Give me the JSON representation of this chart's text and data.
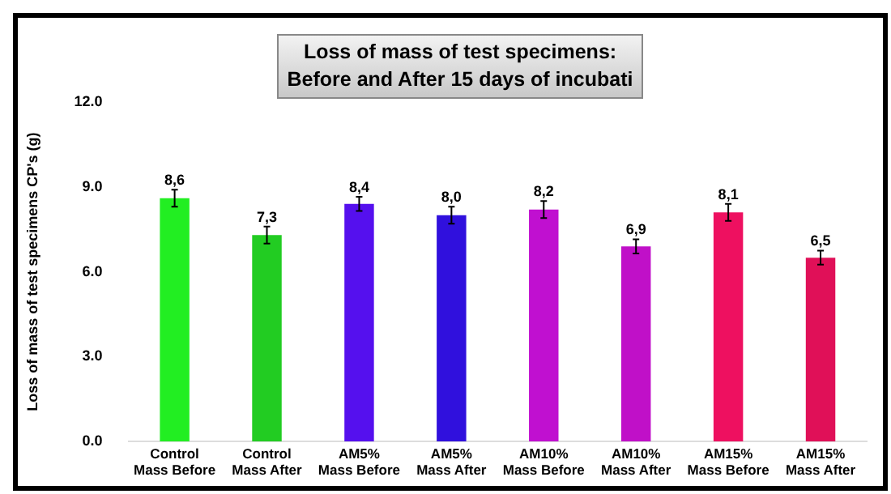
{
  "chart_data": {
    "type": "bar",
    "title": "Loss of mass of test specimens:\nBefore and After 15 days of incubati",
    "ylabel": "Loss of mass of test specimens CP's (g)",
    "categories": [
      "Control Mass Before",
      "Control Mass After",
      "AM5% Mass Before",
      "AM5% Mass After",
      "AM10% Mass Before",
      "AM10% Mass After",
      "AM15% Mass Before",
      "AM15% Mass After"
    ],
    "values": [
      8.6,
      7.3,
      8.4,
      8.0,
      8.2,
      6.9,
      8.1,
      6.5
    ],
    "errors": [
      0.3,
      0.3,
      0.25,
      0.3,
      0.3,
      0.25,
      0.3,
      0.25
    ],
    "value_labels": [
      "8,6",
      "7,3",
      "8,4",
      "8,0",
      "8,2",
      "6,9",
      "8,1",
      "6,5"
    ],
    "colors": [
      "#22ee22",
      "#22cc22",
      "#5510ee",
      "#3010dd",
      "#c010d0",
      "#c010c8",
      "#ee1060",
      "#e01058"
    ],
    "ylim": [
      0,
      12
    ],
    "yticks": [
      {
        "value": 0,
        "label": "0.0"
      },
      {
        "value": 3,
        "label": "3.0"
      },
      {
        "value": 6,
        "label": "6.0"
      },
      {
        "value": 9,
        "label": "9.0"
      },
      {
        "value": 12,
        "label": "12.0"
      }
    ],
    "grid": false,
    "legend": false
  }
}
